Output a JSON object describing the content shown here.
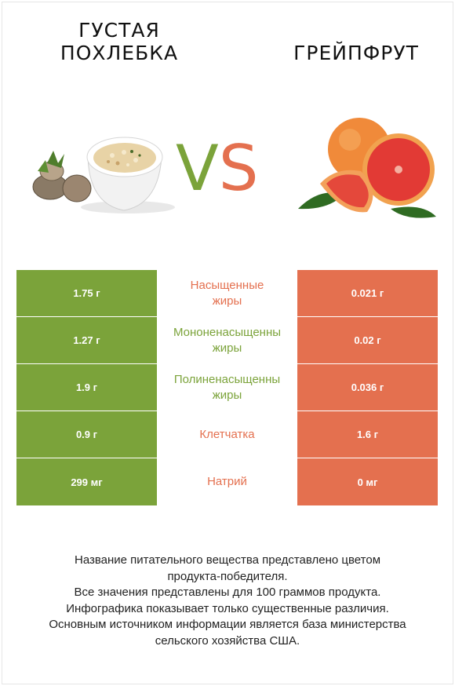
{
  "left_food": {
    "title_line1": "ГУСТАЯ",
    "title_line2": "ПОХЛЕБКА",
    "color": "#7ba33a"
  },
  "right_food": {
    "title": "ГРЕЙПФРУТ",
    "color": "#e4704f"
  },
  "vs": {
    "v": "V",
    "s": "S"
  },
  "rows": [
    {
      "left": "1.75 г",
      "nutrient_line1": "Насыщенные",
      "nutrient_line2": "жиры",
      "right": "0.021 г",
      "winner_color": "#e4704f"
    },
    {
      "left": "1.27 г",
      "nutrient_line1": "Мононенасыщенны",
      "nutrient_line2": "жиры",
      "right": "0.02 г",
      "winner_color": "#7ba33a"
    },
    {
      "left": "1.9 г",
      "nutrient_line1": "Полиненасыщенны",
      "nutrient_line2": "жиры",
      "right": "0.036 г",
      "winner_color": "#7ba33a"
    },
    {
      "left": "0.9 г",
      "nutrient_line1": "Клетчатка",
      "nutrient_line2": "",
      "right": "1.6 г",
      "winner_color": "#e4704f"
    },
    {
      "left": "299 мг",
      "nutrient_line1": "Натрий",
      "nutrient_line2": "",
      "right": "0 мг",
      "winner_color": "#e4704f"
    }
  ],
  "footer": {
    "line1": "Название питательного вещества представлено цветом",
    "line2": "продукта-победителя.",
    "line3": "Все значения представлены для 100 граммов продукта.",
    "line4": "Инфографика показывает только существенные различия.",
    "line5": "Основным источником информации является база министерства",
    "line6": "сельского хозяйства США."
  }
}
